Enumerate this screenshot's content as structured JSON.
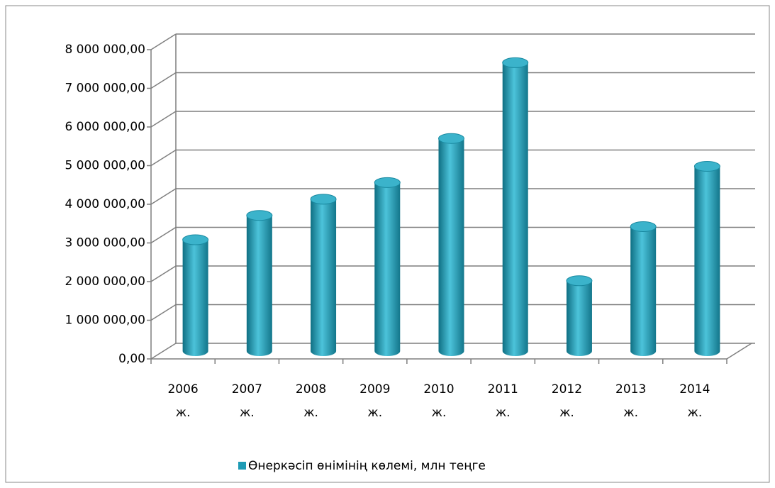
{
  "chart_data": {
    "type": "bar3d",
    "categories": [
      "2006 ж.",
      "2007 ж.",
      "2008 ж.",
      "2009 ж.",
      "2010 ж.",
      "2011 ж.",
      "2012 ж.",
      "2013 ж.",
      "2014 ж."
    ],
    "series": [
      {
        "name": "Өнеркәсіп өнімінің көлемі, млн теңге",
        "color": "#1e9bb5",
        "values": [
          2880000,
          3510000,
          3930000,
          4360000,
          5500000,
          7460000,
          1820000,
          3220000,
          4780000
        ]
      }
    ],
    "ylim": [
      0,
      8000000
    ],
    "yticks": [
      {
        "value": 0,
        "label": "0,00"
      },
      {
        "value": 1000000,
        "label": "1 000 000,00"
      },
      {
        "value": 2000000,
        "label": "2 000 000,00"
      },
      {
        "value": 3000000,
        "label": "3 000 000,00"
      },
      {
        "value": 4000000,
        "label": "4 000 000,00"
      },
      {
        "value": 5000000,
        "label": "5 000 000,00"
      },
      {
        "value": 6000000,
        "label": "6 000 000,00"
      },
      {
        "value": 7000000,
        "label": "7 000 000,00"
      },
      {
        "value": 8000000,
        "label": "8 000 000,00"
      }
    ],
    "grid": true,
    "legend": "bottom"
  }
}
